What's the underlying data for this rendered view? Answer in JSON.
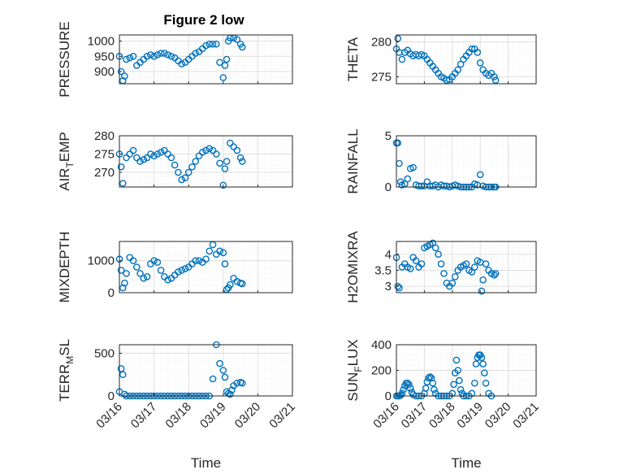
{
  "colors": {
    "marker": "#0072BD",
    "axis": "#262626",
    "grid_major": "#DFDFDF",
    "grid_minor": "#EFEFEF"
  },
  "figure": {
    "title": "Figure 2 low"
  },
  "chart_data": [
    {
      "type": "scatter",
      "ylabel": "PRESSURE",
      "ylim": [
        860,
        1020
      ],
      "yticks": [
        900,
        950,
        1000
      ],
      "ytick_labels": [
        "900",
        "950",
        "1000"
      ],
      "x": [
        16.0,
        16.05,
        16.1,
        16.15,
        16.2,
        16.3,
        16.4,
        16.5,
        16.6,
        16.7,
        16.8,
        16.9,
        17.0,
        17.1,
        17.2,
        17.3,
        17.4,
        17.5,
        17.6,
        17.7,
        17.8,
        17.9,
        18.0,
        18.1,
        18.2,
        18.3,
        18.4,
        18.5,
        18.6,
        18.7,
        18.8,
        18.9,
        19.0,
        19.05,
        19.1,
        19.15,
        19.2,
        19.3,
        19.4,
        19.5,
        19.55
      ],
      "y": [
        950,
        900,
        870,
        885,
        940,
        945,
        950,
        920,
        930,
        940,
        950,
        955,
        950,
        955,
        960,
        960,
        955,
        950,
        945,
        935,
        925,
        930,
        940,
        950,
        960,
        965,
        975,
        985,
        990,
        990,
        990,
        930,
        880,
        920,
        940,
        1000,
        1010,
        1010,
        1005,
        990,
        980
      ],
      "xlim": [
        16,
        21
      ],
      "xtick_labels": [],
      "xlabel": ""
    },
    {
      "type": "scatter",
      "ylabel": "THETA",
      "ylim": [
        274,
        281
      ],
      "yticks": [
        275,
        280
      ],
      "ytick_labels": [
        "275",
        "280"
      ],
      "x": [
        16.0,
        16.05,
        16.1,
        16.2,
        16.3,
        16.4,
        16.5,
        16.6,
        16.7,
        16.8,
        16.9,
        17.0,
        17.1,
        17.2,
        17.3,
        17.4,
        17.5,
        17.6,
        17.7,
        17.8,
        17.9,
        18.0,
        18.1,
        18.2,
        18.3,
        18.4,
        18.5,
        18.6,
        18.7,
        18.8,
        18.9,
        19.0,
        19.1,
        19.2,
        19.3,
        19.4,
        19.5,
        19.55
      ],
      "y": [
        279,
        280.5,
        278.5,
        277.5,
        278.5,
        278.8,
        278.3,
        278.0,
        278.2,
        278.0,
        278.2,
        278.0,
        277.5,
        277.0,
        276.5,
        276.0,
        275.5,
        275.0,
        274.8,
        274.5,
        274.6,
        275.0,
        275.5,
        276.0,
        276.8,
        277.5,
        278.0,
        278.5,
        279.0,
        279.0,
        278.5,
        277.0,
        276.0,
        275.5,
        275.2,
        275.5,
        275.0,
        274.5
      ],
      "xlim": [
        16,
        21
      ],
      "xtick_labels": [],
      "xlabel": ""
    },
    {
      "type": "scatter",
      "ylabel": "AIR_TEMP",
      "ylabel_display": "AIRTEMP",
      "ylim": [
        266,
        280
      ],
      "yticks": [
        270,
        275,
        280
      ],
      "ytick_labels": [
        "270",
        "275",
        "280"
      ],
      "x": [
        16.0,
        16.05,
        16.1,
        16.2,
        16.3,
        16.4,
        16.5,
        16.6,
        16.7,
        16.8,
        16.9,
        17.0,
        17.1,
        17.2,
        17.3,
        17.4,
        17.5,
        17.6,
        17.7,
        17.8,
        17.9,
        18.0,
        18.1,
        18.2,
        18.3,
        18.4,
        18.5,
        18.6,
        18.7,
        18.8,
        18.9,
        19.0,
        19.05,
        19.1,
        19.2,
        19.3,
        19.4,
        19.5,
        19.55
      ],
      "y": [
        275,
        271.5,
        267,
        274,
        275,
        276,
        274,
        273,
        273.5,
        274,
        275,
        274.5,
        275,
        275.5,
        276,
        275,
        274,
        272,
        270,
        268,
        268.5,
        270,
        271.5,
        273,
        274.5,
        275.5,
        276,
        276.5,
        276,
        275,
        272.5,
        266.5,
        271,
        273,
        278,
        277,
        276,
        274,
        273
      ],
      "xlim": [
        16,
        21
      ],
      "xtick_labels": [],
      "xlabel": ""
    },
    {
      "type": "scatter",
      "ylabel": "RAINFALL",
      "ylim": [
        0,
        5
      ],
      "yticks": [
        0,
        5
      ],
      "ytick_labels": [
        "0",
        "5"
      ],
      "x": [
        16.0,
        16.05,
        16.1,
        16.15,
        16.2,
        16.3,
        16.4,
        16.5,
        16.6,
        16.7,
        16.8,
        16.9,
        17.0,
        17.1,
        17.2,
        17.3,
        17.4,
        17.5,
        17.6,
        17.7,
        17.8,
        17.9,
        18.0,
        18.1,
        18.2,
        18.3,
        18.4,
        18.5,
        18.6,
        18.7,
        18.8,
        18.9,
        19.0,
        19.1,
        19.2,
        19.3,
        19.4,
        19.5,
        19.55
      ],
      "y": [
        4.3,
        4.3,
        2.3,
        0.5,
        0.2,
        0.3,
        0.8,
        1.8,
        1.9,
        0.2,
        0.1,
        0.1,
        0.1,
        0.5,
        0.1,
        0.1,
        0.2,
        0,
        0.2,
        0.1,
        0.1,
        0,
        0.1,
        0.2,
        0.1,
        0,
        0,
        0,
        0,
        0,
        0.3,
        0.2,
        1.2,
        0.1,
        0,
        0,
        0,
        0,
        0
      ],
      "xlim": [
        16,
        21
      ],
      "xtick_labels": [],
      "xlabel": ""
    },
    {
      "type": "scatter",
      "ylabel": "MIXDEPTH",
      "ylim": [
        0,
        1600
      ],
      "yticks": [
        0,
        1000
      ],
      "ytick_labels": [
        "0",
        "1000"
      ],
      "x": [
        16.0,
        16.05,
        16.1,
        16.15,
        16.2,
        16.3,
        16.4,
        16.5,
        16.6,
        16.7,
        16.8,
        16.9,
        17.0,
        17.1,
        17.2,
        17.3,
        17.4,
        17.5,
        17.6,
        17.7,
        17.8,
        17.9,
        18.0,
        18.1,
        18.2,
        18.3,
        18.4,
        18.5,
        18.6,
        18.7,
        18.8,
        18.9,
        19.0,
        19.05,
        19.1,
        19.15,
        19.2,
        19.3,
        19.4,
        19.5,
        19.55
      ],
      "y": [
        1050,
        700,
        150,
        300,
        600,
        1100,
        1000,
        800,
        600,
        450,
        500,
        900,
        1000,
        950,
        700,
        500,
        400,
        450,
        550,
        650,
        700,
        750,
        800,
        900,
        1000,
        1000,
        950,
        1050,
        1300,
        1500,
        1200,
        1300,
        1250,
        900,
        100,
        150,
        250,
        450,
        350,
        300,
        280
      ],
      "xlim": [
        16,
        21
      ],
      "xtick_labels": [],
      "xlabel": ""
    },
    {
      "type": "scatter",
      "ylabel": "H2OMIXRA",
      "ylim": [
        2.8,
        4.4
      ],
      "yticks": [
        3,
        3.5,
        4
      ],
      "ytick_labels": [
        "3",
        "3.5",
        "4"
      ],
      "x": [
        16.0,
        16.05,
        16.1,
        16.2,
        16.3,
        16.4,
        16.5,
        16.6,
        16.7,
        16.8,
        16.9,
        17.0,
        17.1,
        17.2,
        17.3,
        17.4,
        17.5,
        17.6,
        17.7,
        17.8,
        17.9,
        18.0,
        18.1,
        18.2,
        18.3,
        18.4,
        18.5,
        18.6,
        18.7,
        18.8,
        18.9,
        19.0,
        19.05,
        19.1,
        19.2,
        19.3,
        19.4,
        19.5,
        19.55
      ],
      "y": [
        3.9,
        3.0,
        2.95,
        3.6,
        3.7,
        3.6,
        3.55,
        3.9,
        3.8,
        3.6,
        3.7,
        4.2,
        4.25,
        4.3,
        4.35,
        4.2,
        4.0,
        3.7,
        3.4,
        3.1,
        3.0,
        3.1,
        3.3,
        3.5,
        3.6,
        3.65,
        3.7,
        3.5,
        3.45,
        3.6,
        3.8,
        3.75,
        2.85,
        3.2,
        3.7,
        3.5,
        3.4,
        3.35,
        3.4
      ],
      "xlim": [
        16,
        21
      ],
      "xtick_labels": [],
      "xlabel": ""
    },
    {
      "type": "scatter",
      "ylabel": "TERR_MSL",
      "ylabel_display": "TERRMSL",
      "ylim": [
        0,
        600
      ],
      "yticks": [
        0,
        500
      ],
      "ytick_labels": [
        "0",
        "500"
      ],
      "x": [
        16.0,
        16.05,
        16.1,
        16.15,
        16.2,
        16.3,
        16.4,
        16.5,
        16.6,
        16.7,
        16.8,
        16.9,
        17.0,
        17.1,
        17.2,
        17.3,
        17.4,
        17.5,
        17.6,
        17.7,
        17.8,
        17.9,
        18.0,
        18.1,
        18.2,
        18.3,
        18.4,
        18.5,
        18.6,
        18.7,
        18.8,
        18.9,
        19.0,
        19.05,
        19.1,
        19.15,
        19.2,
        19.25,
        19.3,
        19.4,
        19.5,
        19.55
      ],
      "y": [
        50,
        320,
        250,
        20,
        0,
        0,
        0,
        0,
        0,
        0,
        0,
        0,
        0,
        0,
        0,
        0,
        0,
        0,
        0,
        0,
        0,
        0,
        0,
        0,
        0,
        0,
        0,
        0,
        0,
        200,
        600,
        380,
        300,
        220,
        50,
        30,
        20,
        70,
        120,
        150,
        160,
        150
      ],
      "xlim": [
        16,
        21
      ],
      "xtick_labels": [
        "03/16",
        "03/17",
        "03/18",
        "03/19",
        "03/20",
        "03/21"
      ],
      "xlabel": "Time"
    },
    {
      "type": "scatter",
      "ylabel": "SUN_FLUX",
      "ylabel_display": "SUNFLUX",
      "ylim": [
        0,
        400
      ],
      "yticks": [
        0,
        200,
        400
      ],
      "ytick_labels": [
        "0",
        "200",
        "400"
      ],
      "x": [
        16.0,
        16.05,
        16.1,
        16.15,
        16.2,
        16.25,
        16.3,
        16.35,
        16.4,
        16.45,
        16.5,
        16.55,
        16.6,
        16.7,
        16.8,
        16.9,
        17.0,
        17.05,
        17.1,
        17.15,
        17.2,
        17.25,
        17.3,
        17.35,
        17.4,
        17.5,
        17.6,
        17.7,
        17.8,
        17.9,
        18.0,
        18.05,
        18.1,
        18.15,
        18.2,
        18.25,
        18.3,
        18.35,
        18.4,
        18.5,
        18.6,
        18.7,
        18.8,
        18.85,
        18.9,
        18.95,
        19.0,
        19.05,
        19.1,
        19.15,
        19.2,
        19.3,
        19.4
      ],
      "y": [
        0,
        0,
        0,
        5,
        20,
        50,
        80,
        100,
        100,
        90,
        60,
        30,
        10,
        0,
        0,
        0,
        20,
        60,
        110,
        140,
        150,
        140,
        100,
        50,
        20,
        0,
        0,
        0,
        0,
        0,
        20,
        90,
        180,
        280,
        200,
        120,
        50,
        20,
        0,
        0,
        0,
        20,
        100,
        250,
        300,
        320,
        320,
        300,
        250,
        180,
        100,
        20,
        0
      ],
      "xlim": [
        16,
        21
      ],
      "xtick_labels": [
        "03/16",
        "03/17",
        "03/18",
        "03/19",
        "03/20",
        "03/21"
      ],
      "xlabel": "Time"
    }
  ]
}
